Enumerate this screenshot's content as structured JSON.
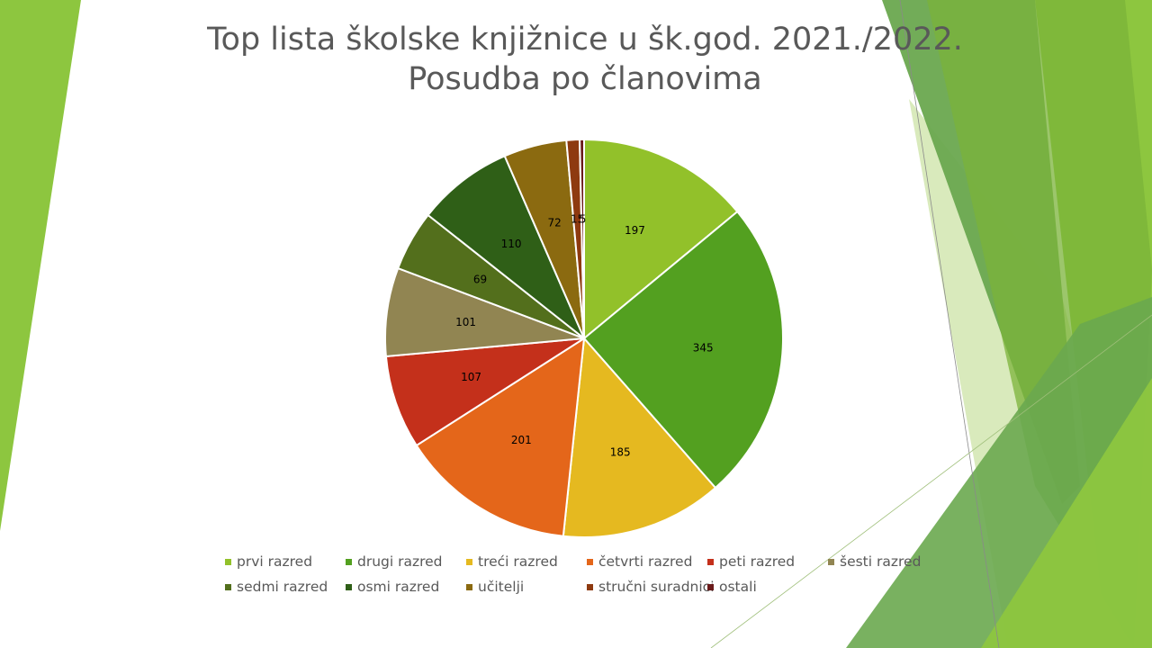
{
  "slide": {
    "title_line1": "Top lista školske knjižnice u šk.god. 2021./2022.",
    "title_line2": "Posudba po članovima"
  },
  "theme": {
    "green_light": "#8DC63F",
    "green_mid": "#6AA84F",
    "green_pale": "#D5E8B5"
  },
  "chart_data": {
    "type": "pie",
    "title": "Top lista školske knjižnice u šk.god. 2021./2022. Posudba po članovima",
    "start_angle": "12 o'clock, clockwise",
    "legend_position": "bottom",
    "categories": [
      "prvi razred",
      "drugi razred",
      "treći razred",
      "četvrti razred",
      "peti razred",
      "šesti razred",
      "sedmi razred",
      "osmi razred",
      "učitelji",
      "stručni suradnici",
      "ostali"
    ],
    "values": [
      197,
      345,
      185,
      201,
      107,
      101,
      69,
      110,
      72,
      15,
      5
    ],
    "data_labels": [
      "197",
      "345",
      "185",
      "201",
      "107",
      "101",
      "69",
      "110",
      "72",
      "15",
      "5"
    ],
    "colors": [
      "#92C12A",
      "#53A020",
      "#E5B920",
      "#E4661A",
      "#C4301B",
      "#918552",
      "#536F1C",
      "#2F5F17",
      "#8B6A10",
      "#8E3A10",
      "#6A1A1A"
    ]
  }
}
